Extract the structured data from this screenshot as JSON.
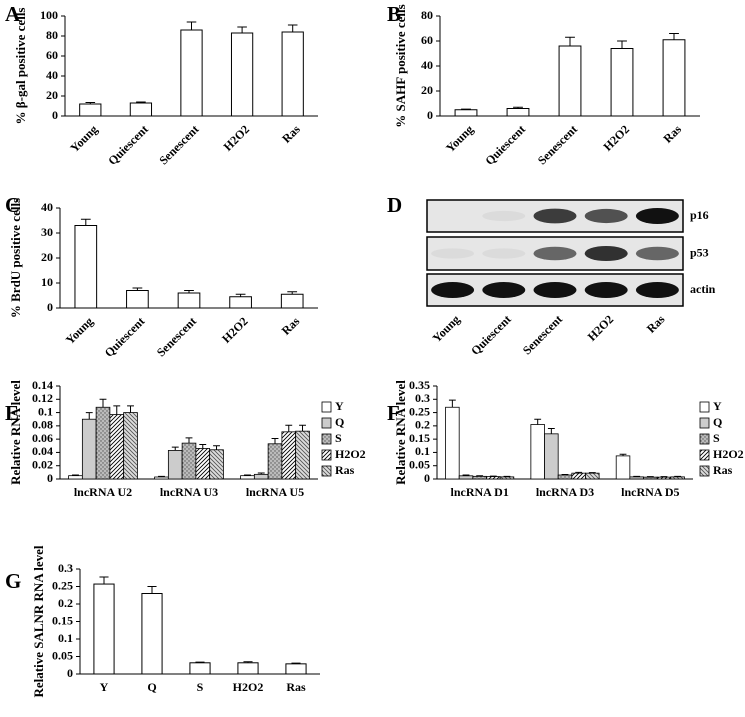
{
  "chart_data": [
    {
      "type": "bar",
      "panel": "A",
      "ylabel": "% β-gal positive cells",
      "categories": [
        "Young",
        "Quiescent",
        "Senescent",
        "H2O2",
        "Ras"
      ],
      "values": [
        12,
        13,
        86,
        83,
        84
      ],
      "errors": [
        1.5,
        1,
        8,
        6,
        7
      ],
      "color": "#ffffff",
      "ylim": [
        0,
        100
      ],
      "yticks": [
        0,
        20,
        40,
        60,
        80,
        100
      ]
    },
    {
      "type": "bar",
      "panel": "B",
      "ylabel": "% SAHF positive cells",
      "categories": [
        "Young",
        "Quiescent",
        "Senescent",
        "H2O2",
        "Ras"
      ],
      "values": [
        5,
        6,
        56,
        54,
        61
      ],
      "errors": [
        0.5,
        1,
        7,
        6,
        5
      ],
      "color": "#ffffff",
      "ylim": [
        0,
        80
      ],
      "yticks": [
        0,
        20,
        40,
        60,
        80
      ]
    },
    {
      "type": "bar",
      "panel": "C",
      "ylabel": "% BrdU positive cells",
      "categories": [
        "Young",
        "Quiescent",
        "Senescent",
        "H2O2",
        "Ras"
      ],
      "values": [
        33,
        7,
        6,
        4.5,
        5.5
      ],
      "errors": [
        2.5,
        1,
        1,
        1,
        1
      ],
      "color": "#ffffff",
      "ylim": [
        0,
        40
      ],
      "yticks": [
        0,
        10,
        20,
        30,
        40
      ]
    },
    {
      "type": "blot",
      "panel": "D",
      "rows": [
        "p16",
        "p53",
        "actin"
      ],
      "categories": [
        "Young",
        "Quiescent",
        "Senescent",
        "H2O2",
        "Ras"
      ]
    },
    {
      "type": "grouped",
      "panel": "E",
      "ylabel": "Relative RNA level",
      "categories": [
        "lncRNA U2",
        "lncRNA U3",
        "lncRNA U5"
      ],
      "series": [
        {
          "name": "Y",
          "color": "#ffffff",
          "pattern": "solid",
          "values": [
            0.005,
            0.003,
            0.005
          ],
          "errors": [
            0.001,
            0.001,
            0.001
          ]
        },
        {
          "name": "Q",
          "color": "#cccccc",
          "pattern": "solid",
          "values": [
            0.09,
            0.043,
            0.007
          ],
          "errors": [
            0.01,
            0.005,
            0.002
          ]
        },
        {
          "name": "S",
          "color": "#bbbbbb",
          "pattern": "dots",
          "values": [
            0.108,
            0.054,
            0.053
          ],
          "errors": [
            0.012,
            0.008,
            0.008
          ]
        },
        {
          "name": "H2O2",
          "color": "#ffffff",
          "pattern": "diagonal",
          "values": [
            0.097,
            0.046,
            0.071
          ],
          "errors": [
            0.013,
            0.006,
            0.01
          ]
        },
        {
          "name": "Ras",
          "color": "#dddddd",
          "pattern": "hatch",
          "values": [
            0.1,
            0.044,
            0.072
          ],
          "errors": [
            0.01,
            0.006,
            0.009
          ]
        }
      ],
      "ylim": [
        0,
        0.14
      ],
      "yticks": [
        0,
        0.02,
        0.04,
        0.06,
        0.08,
        0.1,
        0.12,
        0.14
      ]
    },
    {
      "type": "grouped",
      "panel": "F",
      "ylabel": "Relative RNA level",
      "categories": [
        "lncRNA D1",
        "lncRNA D3",
        "lncRNA D5"
      ],
      "series": [
        {
          "name": "Y",
          "color": "#ffffff",
          "pattern": "solid",
          "values": [
            0.27,
            0.205,
            0.087
          ],
          "errors": [
            0.027,
            0.02,
            0.006
          ]
        },
        {
          "name": "Q",
          "color": "#cccccc",
          "pattern": "solid",
          "values": [
            0.012,
            0.17,
            0.008
          ],
          "errors": [
            0.003,
            0.02,
            0.002
          ]
        },
        {
          "name": "S",
          "color": "#bbbbbb",
          "pattern": "dots",
          "values": [
            0.01,
            0.015,
            0.007
          ],
          "errors": [
            0.002,
            0.002,
            0.002
          ]
        },
        {
          "name": "H2O2",
          "color": "#ffffff",
          "pattern": "diagonal",
          "values": [
            0.009,
            0.022,
            0.007
          ],
          "errors": [
            0.002,
            0.003,
            0.002
          ]
        },
        {
          "name": "Ras",
          "color": "#dddddd",
          "pattern": "hatch",
          "values": [
            0.008,
            0.022,
            0.008
          ],
          "errors": [
            0.002,
            0.002,
            0.002
          ]
        }
      ],
      "ylim": [
        0,
        0.35
      ],
      "yticks": [
        0,
        0.05,
        0.1,
        0.15,
        0.2,
        0.25,
        0.3,
        0.35
      ]
    },
    {
      "type": "bar",
      "panel": "G",
      "ylabel": "Relative SALNR RNA level",
      "categories": [
        "Y",
        "Q",
        "S",
        "H2O2",
        "Ras"
      ],
      "values": [
        0.257,
        0.23,
        0.032,
        0.032,
        0.029
      ],
      "errors": [
        0.02,
        0.02,
        0.002,
        0.003,
        0.002
      ],
      "color": "#ffffff",
      "ylim": [
        0,
        0.3
      ],
      "yticks": [
        0,
        0.05,
        0.1,
        0.15,
        0.2,
        0.25,
        0.3
      ]
    }
  ]
}
